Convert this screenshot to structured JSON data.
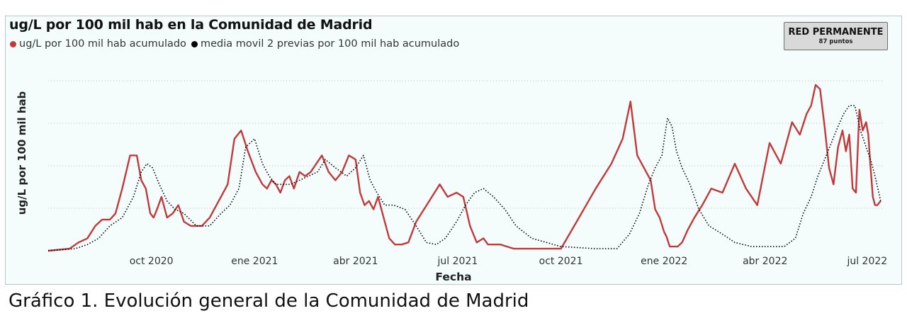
{
  "chart_data": {
    "type": "line",
    "title": "ug/L por 100 mil hab en la Comunidad de Madrid",
    "xlabel": "Fecha",
    "ylabel": "ug/L por 100 mil hab",
    "y_tick_labels_shown": false,
    "grid": "horizontal dotted",
    "legend_placement": "top-left",
    "x_ticks": [
      "2020-10-01",
      "2021-01-01",
      "2021-04-01",
      "2021-07-01",
      "2021-10-01",
      "2022-01-01",
      "2022-04-01",
      "2022-07-01"
    ],
    "x_tick_labels": [
      "oct 2020",
      "ene 2021",
      "abr 2021",
      "jul 2021",
      "oct 2021",
      "ene 2022",
      "abr 2022",
      "jul 2022"
    ],
    "xlim": [
      "2020-07-01",
      "2022-07-15"
    ],
    "ylim": [
      0,
      4.1
    ],
    "series": [
      {
        "name": "ug/L por 100 mil hab acumulado",
        "color": "#c0393b",
        "style": "solid",
        "x": [
          "2020-07-01",
          "2020-07-20",
          "2020-07-28",
          "2020-08-05",
          "2020-08-12",
          "2020-08-18",
          "2020-08-25",
          "2020-08-30",
          "2020-09-05",
          "2020-09-12",
          "2020-09-18",
          "2020-09-22",
          "2020-09-26",
          "2020-09-30",
          "2020-10-03",
          "2020-10-06",
          "2020-10-10",
          "2020-10-15",
          "2020-10-20",
          "2020-10-25",
          "2020-10-30",
          "2020-11-05",
          "2020-11-10",
          "2020-11-15",
          "2020-11-22",
          "2020-11-28",
          "2020-12-02",
          "2020-12-08",
          "2020-12-14",
          "2020-12-20",
          "2020-12-26",
          "2021-01-02",
          "2021-01-08",
          "2021-01-12",
          "2021-01-16",
          "2021-01-20",
          "2021-01-24",
          "2021-01-28",
          "2021-02-01",
          "2021-02-05",
          "2021-02-10",
          "2021-02-15",
          "2021-02-20",
          "2021-02-25",
          "2021-03-02",
          "2021-03-08",
          "2021-03-14",
          "2021-03-20",
          "2021-03-26",
          "2021-04-01",
          "2021-04-05",
          "2021-04-09",
          "2021-04-13",
          "2021-04-17",
          "2021-04-21",
          "2021-04-25",
          "2021-05-01",
          "2021-05-06",
          "2021-05-12",
          "2021-05-18",
          "2021-05-25",
          "2021-06-01",
          "2021-06-08",
          "2021-06-15",
          "2021-06-22",
          "2021-06-30",
          "2021-07-06",
          "2021-07-12",
          "2021-07-18",
          "2021-07-24",
          "2021-07-28",
          "2021-08-02",
          "2021-08-08",
          "2021-08-14",
          "2021-08-20",
          "2021-08-26",
          "2021-09-02",
          "2021-09-10",
          "2021-09-20",
          "2021-10-01",
          "2021-10-15",
          "2021-11-01",
          "2021-11-15",
          "2021-11-25",
          "2021-12-02",
          "2021-12-08",
          "2021-12-14",
          "2021-12-20",
          "2021-12-24",
          "2021-12-28",
          "2022-01-01",
          "2022-01-03",
          "2022-01-06",
          "2022-01-09",
          "2022-01-13",
          "2022-01-17",
          "2022-01-22",
          "2022-01-28",
          "2022-02-04",
          "2022-02-12",
          "2022-02-22",
          "2022-03-05",
          "2022-03-15",
          "2022-03-25",
          "2022-04-05",
          "2022-04-15",
          "2022-04-25",
          "2022-05-02",
          "2022-05-08",
          "2022-05-12",
          "2022-05-16",
          "2022-05-20",
          "2022-05-24",
          "2022-05-28",
          "2022-06-01",
          "2022-06-05",
          "2022-06-09",
          "2022-06-12",
          "2022-06-15",
          "2022-06-18",
          "2022-06-21",
          "2022-06-24",
          "2022-06-27",
          "2022-06-30",
          "2022-07-02",
          "2022-07-04",
          "2022-07-06",
          "2022-07-08",
          "2022-07-10",
          "2022-07-13"
        ],
        "y": [
          0,
          0.05,
          0.2,
          0.3,
          0.6,
          0.75,
          0.75,
          0.9,
          1.5,
          2.3,
          2.3,
          1.7,
          1.5,
          0.9,
          0.8,
          1.0,
          1.3,
          0.8,
          0.9,
          1.1,
          0.7,
          0.6,
          0.6,
          0.6,
          0.8,
          1.1,
          1.3,
          1.6,
          2.7,
          2.9,
          2.4,
          1.9,
          1.6,
          1.5,
          1.7,
          1.6,
          1.4,
          1.7,
          1.8,
          1.5,
          1.9,
          1.8,
          1.9,
          2.1,
          2.3,
          1.9,
          1.7,
          1.9,
          2.3,
          2.2,
          1.4,
          1.1,
          1.2,
          1.0,
          1.3,
          0.9,
          0.3,
          0.15,
          0.15,
          0.2,
          0.7,
          1.0,
          1.3,
          1.6,
          1.3,
          1.4,
          1.3,
          0.6,
          0.2,
          0.3,
          0.15,
          0.15,
          0.15,
          0.1,
          0.05,
          0.05,
          0.05,
          0.05,
          0.05,
          0.05,
          0.7,
          1.5,
          2.1,
          2.7,
          3.6,
          2.3,
          2.0,
          1.7,
          1.0,
          0.8,
          0.45,
          0.35,
          0.1,
          0.1,
          0.1,
          0.2,
          0.5,
          0.8,
          1.1,
          1.5,
          1.4,
          2.1,
          1.5,
          1.1,
          2.6,
          2.1,
          3.1,
          2.8,
          3.3,
          3.5,
          4.0,
          3.9,
          3.0,
          2.0,
          1.6,
          2.5,
          2.9,
          2.4,
          2.8,
          1.5,
          1.4,
          3.4,
          2.9,
          3.1,
          2.8,
          2.0,
          1.3,
          1.1,
          1.1,
          1.2
        ]
      },
      {
        "name": "media movil 2 previas por 100 mil hab acumulado",
        "color": "#000000",
        "style": "dotted",
        "x": [
          "2020-07-01",
          "2020-07-25",
          "2020-08-05",
          "2020-08-15",
          "2020-08-25",
          "2020-09-05",
          "2020-09-15",
          "2020-09-22",
          "2020-09-27",
          "2020-10-02",
          "2020-10-08",
          "2020-10-15",
          "2020-10-22",
          "2020-10-30",
          "2020-11-10",
          "2020-11-22",
          "2020-12-02",
          "2020-12-10",
          "2020-12-18",
          "2020-12-24",
          "2021-01-01",
          "2021-01-08",
          "2021-01-14",
          "2021-01-20",
          "2021-01-26",
          "2021-02-02",
          "2021-02-10",
          "2021-02-18",
          "2021-02-26",
          "2021-03-05",
          "2021-03-14",
          "2021-03-24",
          "2021-04-01",
          "2021-04-08",
          "2021-04-14",
          "2021-04-20",
          "2021-04-27",
          "2021-05-05",
          "2021-05-15",
          "2021-05-25",
          "2021-06-03",
          "2021-06-12",
          "2021-06-20",
          "2021-06-30",
          "2021-07-08",
          "2021-07-16",
          "2021-07-24",
          "2021-08-02",
          "2021-08-12",
          "2021-08-22",
          "2021-09-05",
          "2021-10-01",
          "2021-11-01",
          "2021-11-20",
          "2021-12-01",
          "2021-12-10",
          "2021-12-18",
          "2021-12-24",
          "2021-12-30",
          "2022-01-04",
          "2022-01-08",
          "2022-01-12",
          "2022-01-17",
          "2022-01-24",
          "2022-02-01",
          "2022-02-10",
          "2022-02-22",
          "2022-03-05",
          "2022-03-20",
          "2022-04-05",
          "2022-04-18",
          "2022-04-28",
          "2022-05-05",
          "2022-05-12",
          "2022-05-18",
          "2022-05-24",
          "2022-05-30",
          "2022-06-05",
          "2022-06-10",
          "2022-06-15",
          "2022-06-20",
          "2022-06-25",
          "2022-06-30",
          "2022-07-04",
          "2022-07-08",
          "2022-07-13"
        ],
        "y": [
          0,
          0.05,
          0.15,
          0.3,
          0.6,
          0.8,
          1.3,
          1.9,
          2.1,
          2.0,
          1.6,
          1.2,
          1.0,
          0.9,
          0.6,
          0.6,
          0.9,
          1.1,
          1.5,
          2.5,
          2.7,
          2.1,
          1.8,
          1.6,
          1.6,
          1.6,
          1.7,
          1.8,
          1.9,
          2.2,
          2.0,
          1.8,
          2.0,
          2.3,
          1.7,
          1.4,
          1.1,
          1.1,
          1.0,
          0.6,
          0.2,
          0.15,
          0.3,
          0.7,
          1.1,
          1.4,
          1.5,
          1.3,
          1.0,
          0.6,
          0.3,
          0.1,
          0.05,
          0.05,
          0.4,
          0.9,
          1.6,
          2.0,
          2.3,
          3.2,
          3.0,
          2.4,
          2.0,
          1.6,
          1.0,
          0.6,
          0.4,
          0.2,
          0.1,
          0.1,
          0.1,
          0.3,
          0.9,
          1.3,
          1.8,
          2.2,
          2.6,
          3.0,
          3.3,
          3.5,
          3.5,
          2.9,
          2.5,
          2.2,
          1.8,
          1.2
        ]
      }
    ]
  },
  "badge": {
    "title": "RED PERMANENTE",
    "subtitle": "87 puntos"
  },
  "caption": "Gráfico 1. Evolución general de la Comunidad de Madrid"
}
